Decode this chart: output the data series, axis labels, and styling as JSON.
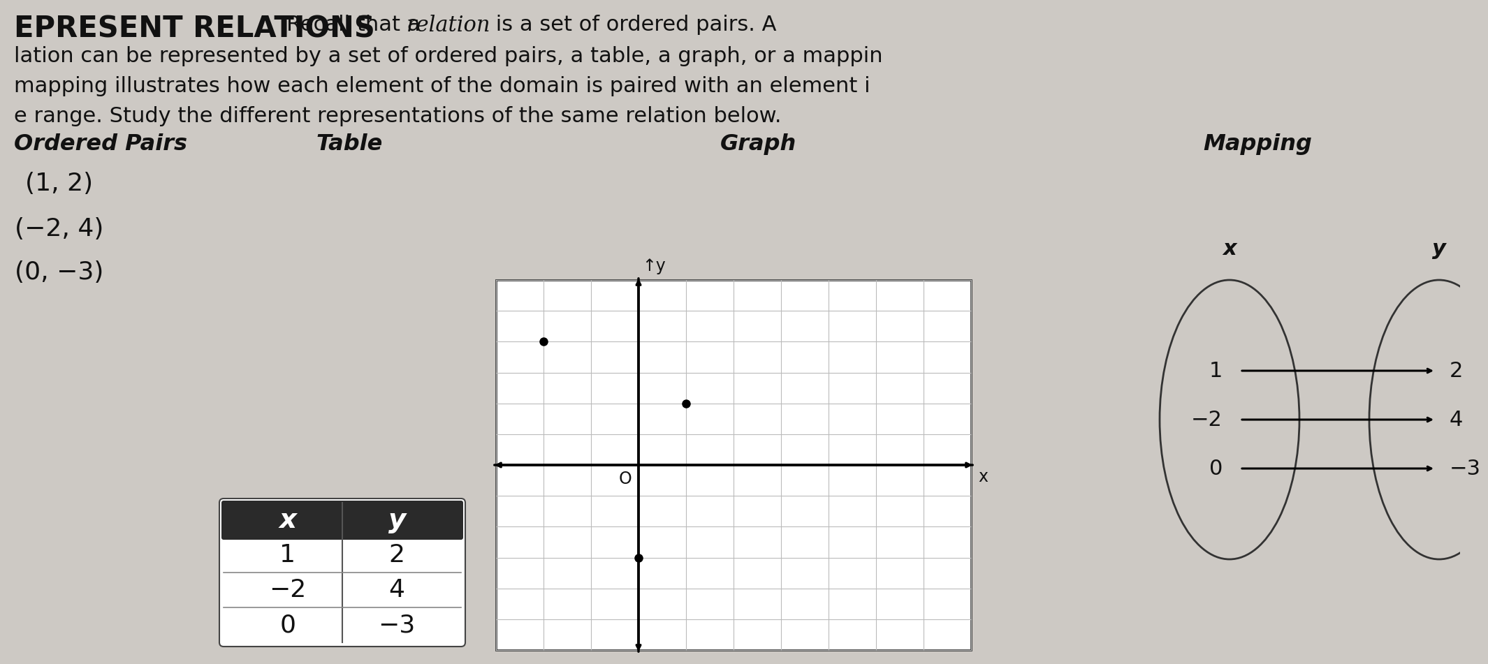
{
  "bg_color": "#cdc9c4",
  "text_color": "#111111",
  "header_bg": "#2a2a2a",
  "ordered_pairs": [
    "(1, 2)",
    "(−2, 4)",
    "(0, −3)"
  ],
  "table_x": [
    "1",
    "−2",
    "0"
  ],
  "table_y": [
    "2",
    "4",
    "−3"
  ],
  "graph_points": [
    [
      1,
      2
    ],
    [
      -2,
      4
    ],
    [
      0,
      -3
    ]
  ],
  "mapping_x_vals": [
    "1",
    "−2",
    "0"
  ],
  "mapping_y_vals": [
    "2",
    "4",
    "−3"
  ],
  "title_bold": "EPRESENT RELATIONS",
  "line1_rest": "Recall that a ",
  "line1_italic": "relation",
  "line1_end": " is a set of ordered pairs. A",
  "line2": "lation can be represented by a set of ordered pairs, a table, a graph, or a mappin",
  "line3": "mapping illustrates how each element of the domain is paired with an element i",
  "line4": "e range. Study the different representations of the same relation below.",
  "sec_ordered_pairs": "Ordered Pairs",
  "sec_table": "Table",
  "sec_graph": "Graph",
  "sec_mapping": "Mapping"
}
